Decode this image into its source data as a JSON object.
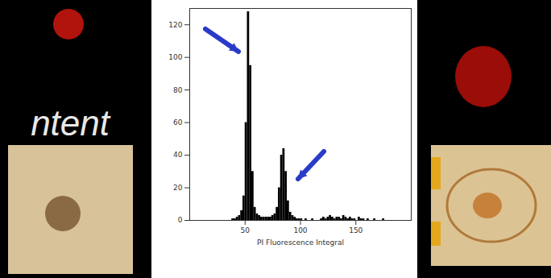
{
  "slide_text": "ntent",
  "chart_data": {
    "type": "histogram",
    "x_label": "PI Fluorescence Integral",
    "bins": [
      30,
      32,
      34,
      36,
      38,
      40,
      42,
      44,
      46,
      48,
      50,
      52,
      54,
      56,
      58,
      60,
      62,
      64,
      66,
      68,
      70,
      72,
      74,
      76,
      78,
      80,
      82,
      84,
      86,
      88,
      90,
      92,
      94,
      96,
      98,
      100,
      102,
      104,
      106,
      108,
      110,
      112,
      114,
      116,
      118,
      120,
      122,
      124,
      126,
      128,
      130,
      132,
      134,
      136,
      138,
      140,
      142,
      144,
      146,
      148,
      150,
      152,
      154,
      156,
      158,
      160,
      162,
      164,
      166,
      168,
      170,
      172,
      174,
      176,
      178,
      180
    ],
    "values": [
      0,
      0,
      0,
      0,
      1,
      1,
      2,
      3,
      6,
      15,
      60,
      128,
      95,
      30,
      8,
      4,
      3,
      2,
      2,
      2,
      2,
      2,
      3,
      4,
      8,
      20,
      40,
      44,
      30,
      12,
      5,
      3,
      2,
      1,
      1,
      1,
      0,
      1,
      0,
      0,
      1,
      0,
      0,
      0,
      1,
      2,
      1,
      2,
      3,
      2,
      1,
      2,
      2,
      1,
      3,
      2,
      1,
      2,
      1,
      1,
      0,
      2,
      1,
      1,
      0,
      1,
      0,
      0,
      1,
      0,
      0,
      0,
      1,
      0,
      0
    ],
    "color": "#000000",
    "xlim": [
      0,
      200
    ],
    "xticks": [
      50,
      100,
      150
    ],
    "ylim": [
      0,
      130
    ],
    "yticks": [
      0,
      20,
      40,
      60,
      80,
      100,
      120
    ],
    "grid": false
  }
}
